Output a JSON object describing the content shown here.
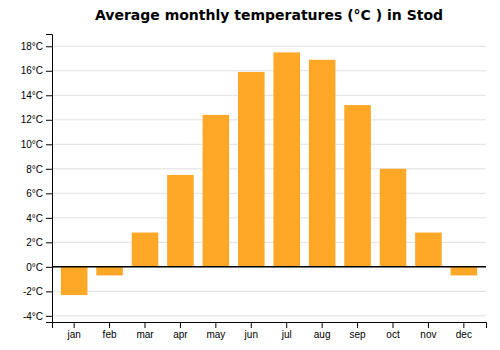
{
  "chart_data": {
    "type": "bar",
    "title": "Average monthly temperatures (°C ) in Stod",
    "categories": [
      "jan",
      "feb",
      "mar",
      "apr",
      "may",
      "jun",
      "jul",
      "aug",
      "sep",
      "oct",
      "nov",
      "dec"
    ],
    "values": [
      -2.3,
      -0.7,
      2.8,
      7.5,
      12.4,
      15.9,
      17.5,
      16.9,
      13.2,
      8.0,
      2.8,
      -0.7
    ],
    "color": "#FFA726",
    "ylim": [
      -4.5,
      19
    ],
    "yticks": [
      {
        "value": -4,
        "label": "-4°C"
      },
      {
        "value": -2,
        "label": "-2°C"
      },
      {
        "value": 0,
        "label": "0°C"
      },
      {
        "value": 2,
        "label": "2°C"
      },
      {
        "value": 4,
        "label": "4°C"
      },
      {
        "value": 6,
        "label": "6°C"
      },
      {
        "value": 8,
        "label": "8°C"
      },
      {
        "value": 10,
        "label": "10°C"
      },
      {
        "value": 12,
        "label": "12°C"
      },
      {
        "value": 14,
        "label": "14°C"
      },
      {
        "value": 16,
        "label": "16°C"
      },
      {
        "value": 18,
        "label": "18°C"
      }
    ],
    "grid": true
  }
}
